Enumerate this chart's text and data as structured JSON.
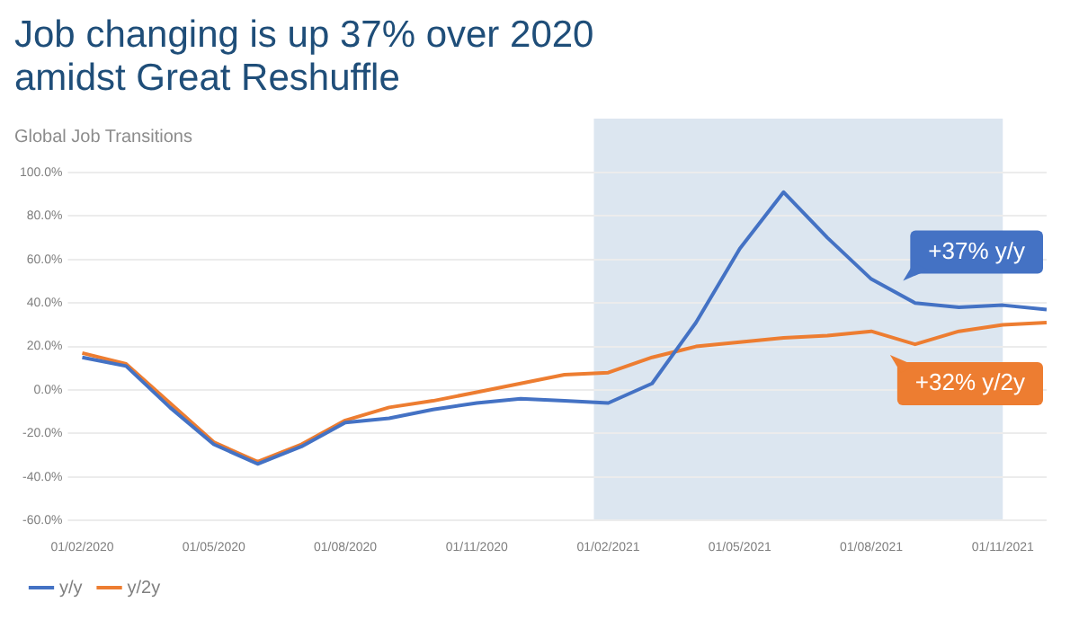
{
  "chart_data": {
    "type": "line",
    "title": "Job changing is up 37% over 2020 amidst Great Reshuffle",
    "subtitle": "Global Job Transitions",
    "categories": [
      "01/02/2020",
      null,
      null,
      "01/05/2020",
      null,
      null,
      "01/08/2020",
      null,
      null,
      "01/11/2020",
      null,
      null,
      "01/02/2021",
      null,
      null,
      "01/05/2021",
      null,
      null,
      "01/08/2021",
      null,
      null,
      "01/11/2021",
      null
    ],
    "series": [
      {
        "name": "y/y",
        "color": "#4472c4",
        "values": [
          15,
          11,
          -8,
          -25,
          -34,
          -26,
          -15,
          -13,
          -9,
          -6,
          -4,
          -5,
          -6,
          3,
          31,
          65,
          91,
          70,
          51,
          40,
          38,
          39,
          37
        ]
      },
      {
        "name": "y/2y",
        "color": "#ed7d31",
        "values": [
          17,
          12,
          -6,
          -24,
          -33,
          -25,
          -14,
          -8,
          -5,
          -1,
          3,
          7,
          8,
          15,
          20,
          22,
          24,
          25,
          27,
          21,
          27,
          30,
          31
        ]
      }
    ],
    "ylim": [
      -60,
      100
    ],
    "yticks": [
      {
        "value": -60,
        "label": "-60.0%"
      },
      {
        "value": -40,
        "label": "-40.0%"
      },
      {
        "value": -20,
        "label": "-20.0%"
      },
      {
        "value": 0,
        "label": "0.0%"
      },
      {
        "value": 20,
        "label": "20.0%"
      },
      {
        "value": 40,
        "label": "40.0%"
      },
      {
        "value": 60,
        "label": "60.0%"
      },
      {
        "value": 80,
        "label": "80.0%"
      },
      {
        "value": 100,
        "label": "100.0%"
      }
    ],
    "grid": "y",
    "legend": "bottom left",
    "marker": "none",
    "line_style": "solid",
    "bands": [
      {
        "axis": "x",
        "from": "01/02/2021",
        "to": "01/11/2021",
        "color": "#dce6f0"
      }
    ],
    "annotations": [
      "+37% y/y",
      "+32% y/2y"
    ]
  }
}
